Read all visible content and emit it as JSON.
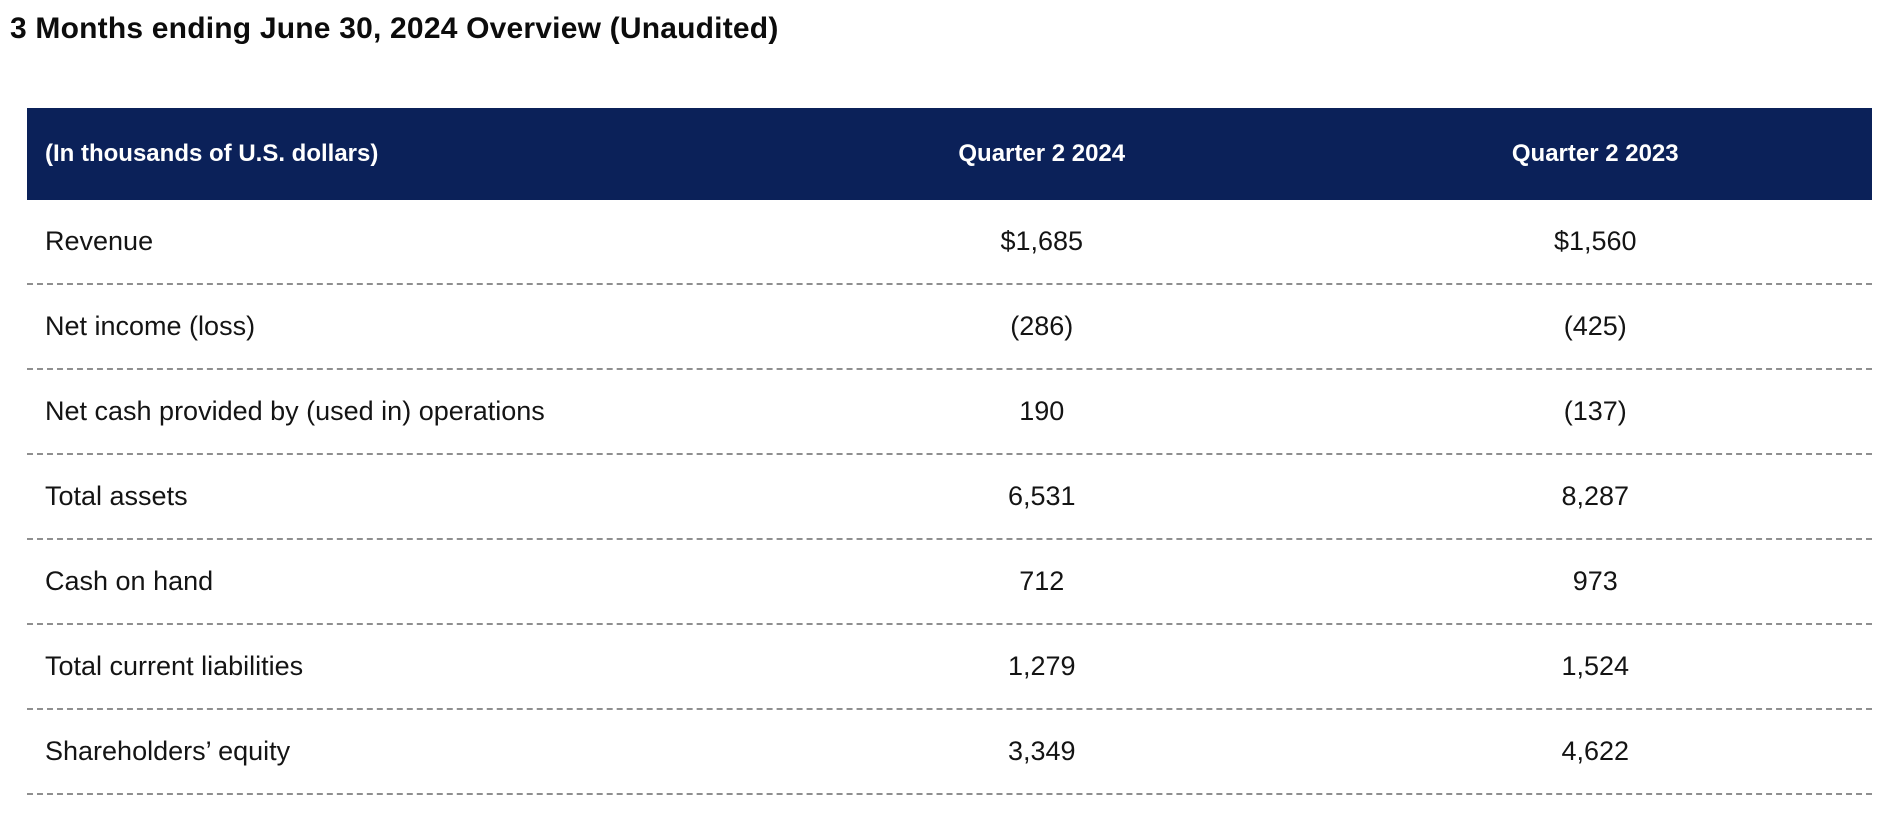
{
  "page": {
    "title": "3 Months ending June 30, 2024 Overview (Unaudited)"
  },
  "colors": {
    "header_background": "#0b2159",
    "header_text": "#ffffff",
    "body_text": "#141414",
    "divider": "#8f8f8f"
  },
  "table": {
    "unit_label": "(In thousands of U.S. dollars)",
    "columns": [
      {
        "label": "Quarter 2 2024"
      },
      {
        "label": "Quarter 2 2023"
      }
    ],
    "rows": [
      {
        "label": "Revenue",
        "values": [
          "$1,685",
          "$1,560"
        ]
      },
      {
        "label": "Net income (loss)",
        "values": [
          "(286)",
          "(425)"
        ]
      },
      {
        "label": "Net cash provided by (used in) operations",
        "values": [
          "190",
          "(137)"
        ]
      },
      {
        "label": "Total assets",
        "values": [
          "6,531",
          "8,287"
        ]
      },
      {
        "label": "Cash on hand",
        "values": [
          "712",
          "973"
        ]
      },
      {
        "label": "Total current liabilities",
        "values": [
          "1,279",
          "1,524"
        ]
      },
      {
        "label": "Shareholders’ equity",
        "values": [
          "3,349",
          "4,622"
        ]
      }
    ]
  }
}
